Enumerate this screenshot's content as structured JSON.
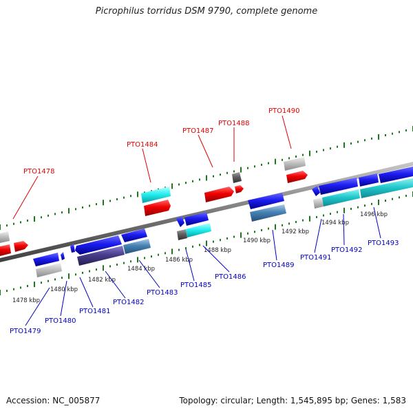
{
  "title": "Picrophilus torridus DSM 9790, complete genome",
  "footer": {
    "accession": "Accession: NC_005877",
    "topology": "Topology: circular; Length: 1,545,895 bp; Genes: 1,583"
  },
  "colors": {
    "forward_label": "#e00000",
    "reverse_label": "#0000c0",
    "tick": "#1a7a1a",
    "axis": "#808080"
  },
  "kbp_labels": [
    "1478 kbp",
    "1480 kbp",
    "1482 kbp",
    "1484 kbp",
    "1486 kbp",
    "1488 kbp",
    "1490 kbp",
    "1492 kbp",
    "1494 kbp",
    "1496 kbp"
  ],
  "forward_genes": [
    "PTO1478",
    "PTO1484",
    "PTO1487",
    "PTO1488",
    "PTO1490"
  ],
  "reverse_genes": [
    "PTO1479",
    "PTO1480",
    "PTO1481",
    "PTO1482",
    "PTO1483",
    "PTO1485",
    "PTO1486",
    "PTO1489",
    "PTO1491",
    "PTO1492",
    "PTO1493"
  ]
}
